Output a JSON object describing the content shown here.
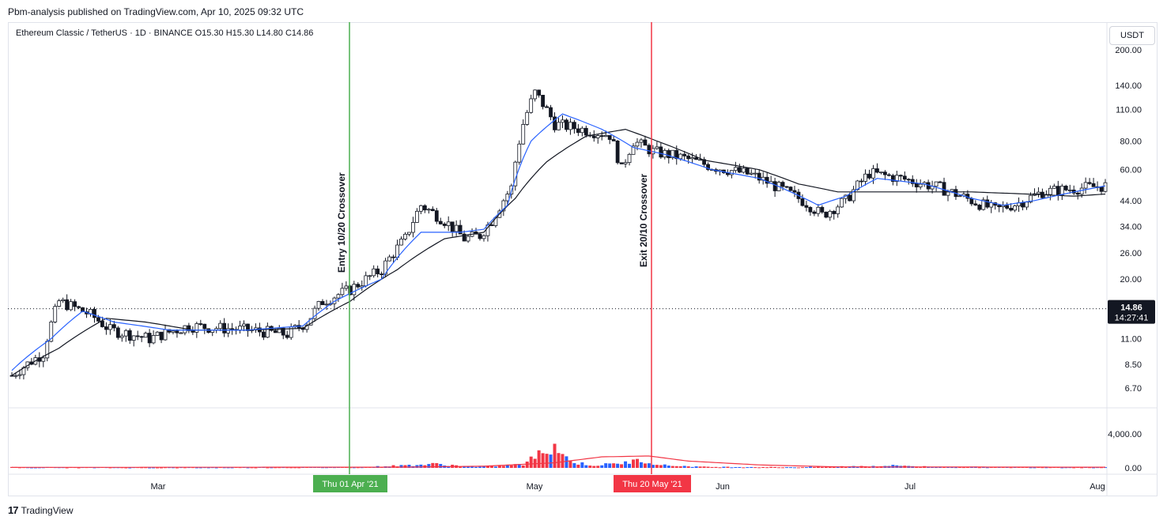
{
  "header": {
    "publisher": "Pbm-analysis published on TradingView.com, Apr 10, 2025 09:32 UTC"
  },
  "symbol_line": "Ethereum Classic / TetherUS · 1D · BINANCE   O15.30  H15.30  L14.80  C14.86",
  "currency_button": "USDT",
  "footer": {
    "brand": "TradingView"
  },
  "colors": {
    "up": "#ffffff",
    "down": "#131722",
    "ema_fast": "#2962ff",
    "ema_slow": "#131722",
    "entry": "#4caf50",
    "exit": "#f23645",
    "vol_up": "#2962ff",
    "vol_down": "#f23645",
    "vol_ma": "#f23645"
  },
  "chart_data": {
    "type": "candlestick",
    "price_scale": "log",
    "y_ticks": [
      "200.00",
      "140.00",
      "110.00",
      "80.00",
      "60.00",
      "44.00",
      "34.00",
      "26.00",
      "20.00",
      "11.00",
      "8.50",
      "6.70"
    ],
    "y_tick_values": [
      200,
      140,
      110,
      80,
      60,
      44,
      34,
      26,
      20,
      11,
      8.5,
      6.7
    ],
    "volume_ticks": [
      "4,000.00",
      "0.00"
    ],
    "volume_tick_values": [
      4000,
      0
    ],
    "x_ticks": [
      "Mar",
      "May",
      "Jun",
      "Jul",
      "Aug"
    ],
    "current_price": {
      "value": 14.86,
      "label": "14.86",
      "countdown": "14:27:41"
    },
    "entry_marker": {
      "annotation": "Entry 10/20 Crossover",
      "date_label": "Thu 01 Apr '21"
    },
    "exit_marker": {
      "annotation": "Exit 20/10 Crossover",
      "date_label": "Thu 20 May '21"
    },
    "series": [
      {
        "name": "price",
        "anchors": [
          [
            0,
            7.6
          ],
          [
            8,
            9.5
          ],
          [
            12,
            16
          ],
          [
            20,
            14
          ],
          [
            25,
            12
          ],
          [
            35,
            11
          ],
          [
            45,
            12.5
          ],
          [
            60,
            12
          ],
          [
            70,
            11.5
          ],
          [
            75,
            13
          ],
          [
            79,
            16
          ],
          [
            86,
            18
          ],
          [
            94,
            22
          ],
          [
            100,
            30
          ],
          [
            104,
            42
          ],
          [
            110,
            36
          ],
          [
            115,
            30
          ],
          [
            119,
            31
          ],
          [
            122,
            36
          ],
          [
            127,
            50
          ],
          [
            130,
            95
          ],
          [
            133,
            130
          ],
          [
            138,
            95
          ],
          [
            145,
            90
          ],
          [
            152,
            85
          ],
          [
            155,
            60
          ],
          [
            158,
            80
          ],
          [
            163,
            72
          ],
          [
            170,
            68
          ],
          [
            178,
            62
          ],
          [
            188,
            57
          ],
          [
            196,
            49
          ],
          [
            202,
            43
          ],
          [
            206,
            38
          ],
          [
            212,
            44
          ],
          [
            218,
            58
          ],
          [
            226,
            55
          ],
          [
            236,
            50
          ],
          [
            244,
            44
          ],
          [
            250,
            40
          ],
          [
            256,
            43
          ],
          [
            262,
            48
          ],
          [
            272,
            50
          ],
          [
            278,
            51
          ]
        ]
      },
      {
        "name": "EMA 10",
        "anchors": [
          [
            0,
            8
          ],
          [
            10,
            11
          ],
          [
            18,
            14.5
          ],
          [
            26,
            13
          ],
          [
            40,
            12
          ],
          [
            60,
            12
          ],
          [
            74,
            12.5
          ],
          [
            82,
            16
          ],
          [
            94,
            20
          ],
          [
            104,
            32
          ],
          [
            114,
            32
          ],
          [
            120,
            33
          ],
          [
            126,
            42
          ],
          [
            132,
            80
          ],
          [
            140,
            105
          ],
          [
            150,
            90
          ],
          [
            158,
            75
          ],
          [
            166,
            70
          ],
          [
            178,
            60
          ],
          [
            190,
            55
          ],
          [
            198,
            48
          ],
          [
            205,
            42
          ],
          [
            212,
            46
          ],
          [
            220,
            55
          ],
          [
            232,
            52
          ],
          [
            244,
            45
          ],
          [
            252,
            42
          ],
          [
            260,
            44
          ],
          [
            270,
            48
          ],
          [
            278,
            51
          ]
        ]
      },
      {
        "name": "EMA 20",
        "anchors": [
          [
            0,
            7.6
          ],
          [
            12,
            10
          ],
          [
            24,
            13.5
          ],
          [
            34,
            13
          ],
          [
            46,
            12
          ],
          [
            60,
            12
          ],
          [
            74,
            12.2
          ],
          [
            86,
            16
          ],
          [
            98,
            22
          ],
          [
            110,
            30
          ],
          [
            120,
            32
          ],
          [
            128,
            45
          ],
          [
            136,
            65
          ],
          [
            146,
            84
          ],
          [
            156,
            90
          ],
          [
            164,
            80
          ],
          [
            176,
            66
          ],
          [
            190,
            60
          ],
          [
            200,
            52
          ],
          [
            210,
            48
          ],
          [
            220,
            48
          ],
          [
            232,
            48
          ],
          [
            244,
            48
          ],
          [
            258,
            47
          ],
          [
            270,
            46
          ],
          [
            278,
            47
          ]
        ]
      },
      {
        "name": "volume",
        "anchors": [
          [
            0,
            80
          ],
          [
            40,
            60
          ],
          [
            90,
            100
          ],
          [
            108,
            450
          ],
          [
            118,
            100
          ],
          [
            130,
            400
          ],
          [
            138,
            2800
          ],
          [
            142,
            700
          ],
          [
            148,
            300
          ],
          [
            154,
            500
          ],
          [
            160,
            900
          ],
          [
            166,
            300
          ],
          [
            176,
            120
          ],
          [
            200,
            80
          ],
          [
            226,
            280
          ],
          [
            234,
            120
          ],
          [
            278,
            80
          ]
        ]
      },
      {
        "name": "volume MA",
        "anchors": [
          [
            0,
            60
          ],
          [
            100,
            90
          ],
          [
            120,
            200
          ],
          [
            138,
            600
          ],
          [
            150,
            1300
          ],
          [
            162,
            1400
          ],
          [
            172,
            800
          ],
          [
            190,
            350
          ],
          [
            210,
            120
          ],
          [
            278,
            80
          ]
        ]
      }
    ]
  }
}
